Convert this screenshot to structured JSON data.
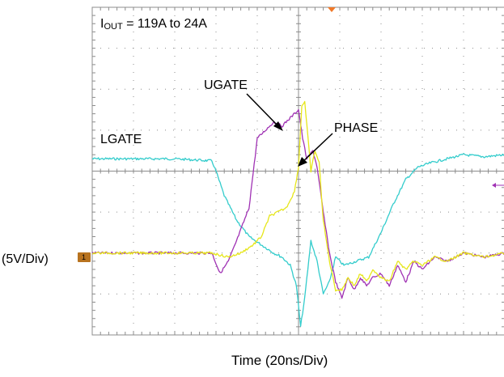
{
  "chart_data": {
    "type": "line",
    "title": "",
    "conditions": {
      "prefix": "I",
      "subscript": "OUT",
      "suffix": " = 119A to 24A"
    },
    "xlabel": "Time (20ns/Div)",
    "ylabel": "(5V/Div)",
    "x_unit": "division",
    "xlim": [
      0,
      10
    ],
    "ylim": [
      -4,
      4
    ],
    "grid": true,
    "x_divisions": 10,
    "y_divisions": 8,
    "channel_marker": "1",
    "colors": {
      "LGATE": "#33cccc",
      "UGATE": "#a032b4",
      "PHASE": "#e6e619",
      "grid": "#8c8c8c",
      "marker": "#b8731f",
      "trigger": "#f07828"
    },
    "series": [
      {
        "name": "LGATE",
        "x": [
          0,
          1,
          2,
          2.9,
          3.0,
          3.2,
          3.5,
          3.8,
          4.1,
          4.4,
          4.6,
          4.8,
          4.95,
          5.05,
          5.15,
          5.3,
          5.45,
          5.6,
          5.75,
          5.9,
          6.1,
          6.4,
          6.7,
          7.0,
          7.3,
          7.6,
          7.9,
          8.2,
          8.6,
          9.0,
          9.5,
          10.0
        ],
        "y": [
          0.3,
          0.3,
          0.3,
          0.25,
          0.0,
          -0.6,
          -1.2,
          -1.6,
          -1.8,
          -2.0,
          -2.1,
          -2.3,
          -2.8,
          -3.8,
          -3.1,
          -1.7,
          -2.2,
          -3.0,
          -2.7,
          -2.1,
          -2.3,
          -2.2,
          -2.1,
          -1.5,
          -0.8,
          -0.2,
          0.1,
          0.2,
          0.3,
          0.4,
          0.35,
          0.4
        ]
      },
      {
        "name": "UGATE",
        "x": [
          0,
          1,
          2,
          2.9,
          3.1,
          3.3,
          3.5,
          3.8,
          4.0,
          4.2,
          4.4,
          4.6,
          4.8,
          5.0,
          5.1,
          5.2,
          5.35,
          5.45,
          5.6,
          5.75,
          5.9,
          6.05,
          6.2,
          6.35,
          6.5,
          6.65,
          6.8,
          7.0,
          7.2,
          7.4,
          7.6,
          7.8,
          8.0,
          8.3,
          8.6,
          9.0,
          9.5,
          10.0
        ],
        "y": [
          -2.0,
          -2.0,
          -2.0,
          -2.0,
          -2.5,
          -2.2,
          -1.7,
          -0.9,
          0.8,
          1.0,
          1.2,
          1.1,
          1.3,
          1.5,
          0.8,
          0.3,
          0.5,
          0.1,
          -1.0,
          -2.0,
          -2.7,
          -3.1,
          -2.6,
          -2.9,
          -2.6,
          -2.8,
          -2.6,
          -2.5,
          -2.8,
          -2.3,
          -2.7,
          -2.2,
          -2.4,
          -2.1,
          -2.2,
          -2.0,
          -2.1,
          -2.0
        ]
      },
      {
        "name": "PHASE",
        "x": [
          0,
          1,
          2,
          2.9,
          3.3,
          3.6,
          3.9,
          4.1,
          4.3,
          4.5,
          4.7,
          4.9,
          5.0,
          5.08,
          5.15,
          5.3,
          5.4,
          5.5,
          5.6,
          5.75,
          5.9,
          6.05,
          6.2,
          6.35,
          6.5,
          6.65,
          6.8,
          7.0,
          7.2,
          7.4,
          7.6,
          7.8,
          8.0,
          8.3,
          8.6,
          9.0,
          9.5,
          10.0
        ],
        "y": [
          -2.0,
          -2.0,
          -2.0,
          -2.0,
          -2.1,
          -2.0,
          -1.8,
          -1.6,
          -1.1,
          -1.0,
          -0.9,
          -0.5,
          0.1,
          1.6,
          1.7,
          0.0,
          0.5,
          0.2,
          -1.2,
          -2.2,
          -2.9,
          -2.9,
          -2.6,
          -2.8,
          -2.5,
          -2.7,
          -2.4,
          -2.6,
          -2.7,
          -2.2,
          -2.4,
          -2.2,
          -2.3,
          -2.1,
          -2.2,
          -2.0,
          -2.1,
          -2.0
        ]
      }
    ],
    "annotations": [
      {
        "text": "UGATE",
        "points_to": "UGATE"
      },
      {
        "text": "PHASE",
        "points_to": "PHASE"
      },
      {
        "text": "LGATE",
        "points_to": "LGATE"
      }
    ]
  }
}
